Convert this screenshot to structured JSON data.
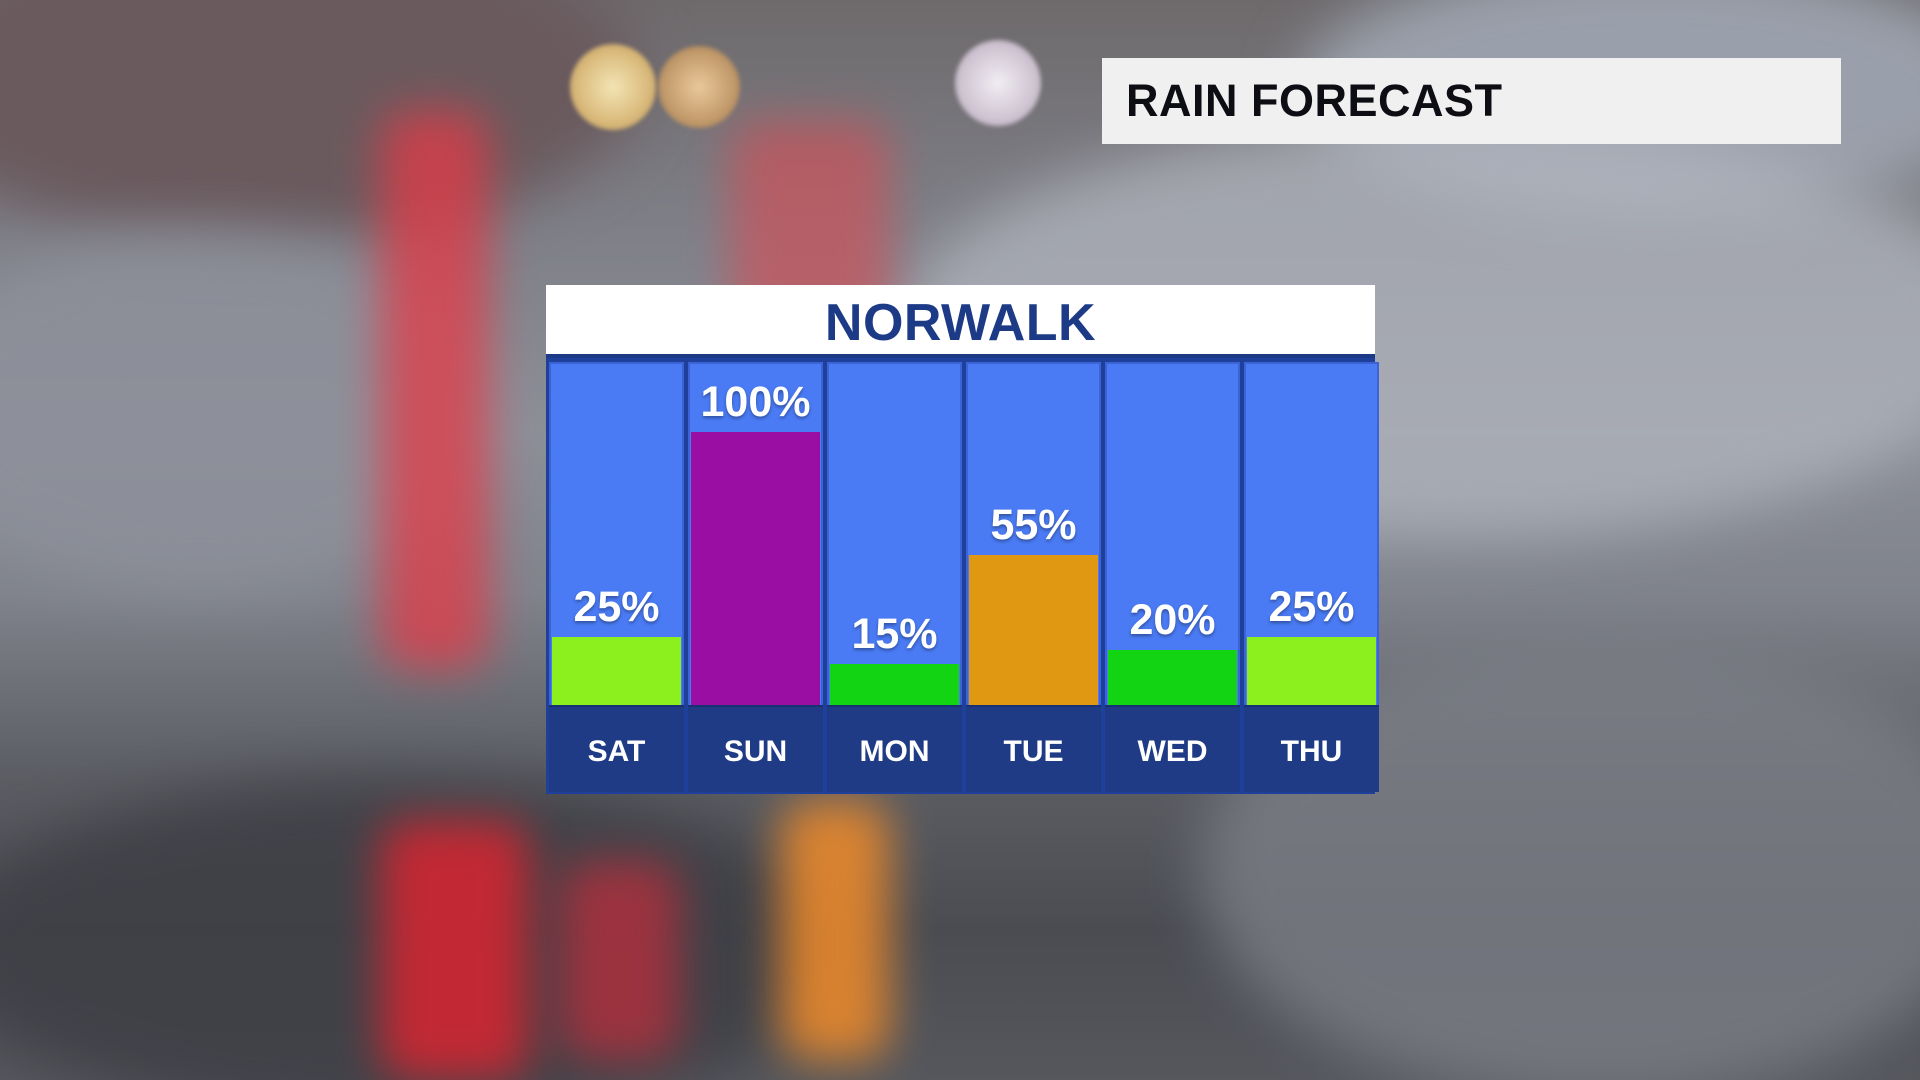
{
  "header": {
    "title": "RAIN FORECAST"
  },
  "panel": {
    "location": "NORWALK"
  },
  "chart_data": {
    "type": "bar",
    "title": "NORWALK",
    "categories": [
      "SAT",
      "SUN",
      "MON",
      "TUE",
      "WED",
      "THU"
    ],
    "values": [
      25,
      100,
      15,
      55,
      20,
      25
    ],
    "labels": [
      "25%",
      "100%",
      "15%",
      "55%",
      "20%",
      "25%"
    ],
    "unit": "%",
    "ylim": [
      0,
      100
    ],
    "bar_colors": [
      "#8bf01d",
      "#9b0ea4",
      "#12d412",
      "#e09812",
      "#12d412",
      "#8bf01d"
    ],
    "grid": false,
    "legend": "none"
  },
  "colors": {
    "panel_column": "#4a7bf4",
    "panel_frame": "#1e3f9a",
    "day_label_bg": "#1f3b86",
    "title_text": "#1d3a86"
  }
}
